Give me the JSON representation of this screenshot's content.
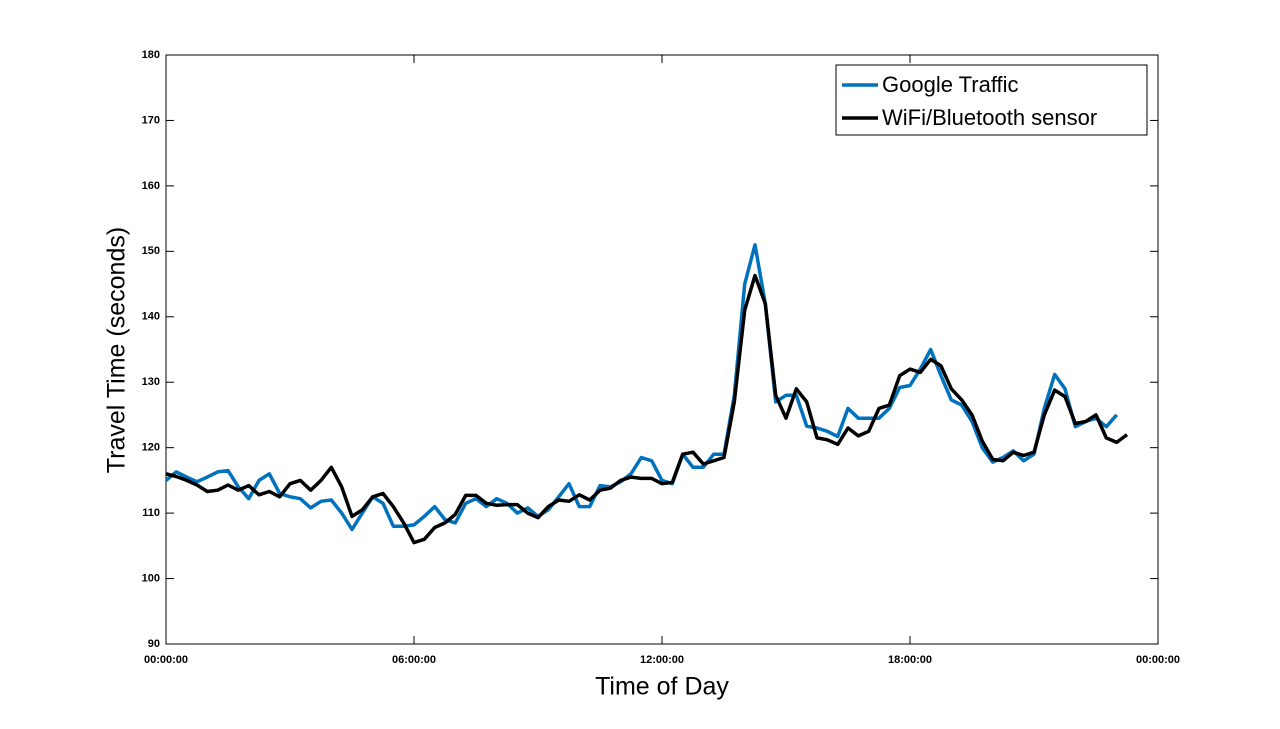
{
  "chart_data": {
    "type": "line",
    "xlabel": "Time of Day",
    "ylabel": "Travel Time (seconds)",
    "x": [
      0,
      0.25,
      0.5,
      0.75,
      1,
      1.25,
      1.5,
      1.75,
      2,
      2.25,
      2.5,
      2.75,
      3,
      3.25,
      3.5,
      3.75,
      4,
      4.25,
      4.5,
      4.75,
      5,
      5.25,
      5.5,
      5.75,
      6,
      6.25,
      6.5,
      6.75,
      7,
      7.25,
      7.5,
      7.75,
      8,
      8.25,
      8.5,
      8.75,
      9,
      9.25,
      9.5,
      9.75,
      10,
      10.25,
      10.5,
      10.75,
      11,
      11.25,
      11.5,
      11.75,
      12,
      12.25,
      12.5,
      12.75,
      13,
      13.25,
      13.5,
      13.75,
      14,
      14.25,
      14.5,
      14.75,
      15,
      15.25,
      15.5,
      15.75,
      16,
      16.25,
      16.5,
      16.75,
      17,
      17.25,
      17.5,
      17.75,
      18,
      18.25,
      18.5,
      18.75,
      19,
      19.25,
      19.5,
      19.75,
      20,
      20.25,
      20.5,
      20.75,
      21,
      21.25,
      21.5,
      21.75,
      22,
      22.25,
      22.5,
      22.75,
      23,
      23.25
    ],
    "series": [
      {
        "name": "Google Traffic",
        "color": "#0072bd",
        "values": [
          115,
          116.3,
          115.5,
          114.8,
          115.5,
          116.3,
          116.5,
          114,
          112.2,
          115,
          116,
          113,
          112.5,
          112.2,
          110.8,
          111.8,
          112,
          110,
          107.5,
          110,
          112.5,
          111.5,
          108,
          108,
          108.2,
          109.5,
          111,
          109,
          108.5,
          111.5,
          112.2,
          111,
          112.2,
          111.5,
          110,
          110.8,
          109.5,
          110.5,
          112.5,
          114.5,
          111,
          111,
          114.2,
          114,
          114.8,
          116,
          118.5,
          118,
          115,
          114.5,
          119,
          117,
          117,
          119,
          119,
          128,
          145,
          151,
          142,
          127,
          128,
          128,
          123.3,
          123,
          122.5,
          121.7,
          126,
          124.5,
          124.5,
          124.5,
          126,
          129.2,
          129.5,
          132,
          135,
          131,
          127.3,
          126.5,
          124,
          120,
          117.8,
          118.5,
          119.5,
          118,
          119,
          126,
          131.2,
          129,
          123.2,
          124,
          124.5,
          123.2,
          125,
          null
        ]
      },
      {
        "name": "WiFi/Bluetooth sensor",
        "color": "#000000",
        "values": [
          116,
          115.6,
          115,
          114.3,
          113.3,
          113.5,
          114.3,
          113.5,
          114.2,
          112.8,
          113.3,
          112.5,
          114.5,
          115,
          113.5,
          115,
          117,
          114,
          109.5,
          110.5,
          112.5,
          113,
          111,
          108.5,
          105.5,
          106,
          107.8,
          108.5,
          109.8,
          112.7,
          112.7,
          111.5,
          111.2,
          111.3,
          111.3,
          110,
          109.3,
          111,
          112,
          111.8,
          112.8,
          112,
          113.5,
          113.8,
          115,
          115.5,
          115.3,
          115.3,
          114.5,
          114.7,
          119,
          119.3,
          117.5,
          118,
          118.5,
          127,
          141,
          146.3,
          142,
          128,
          124.5,
          129,
          127,
          121.5,
          121.2,
          120.5,
          123,
          121.8,
          122.5,
          126,
          126.5,
          131,
          132,
          131.5,
          133.5,
          132.5,
          129,
          127.3,
          125,
          121,
          118.2,
          118,
          119.3,
          118.8,
          119.3,
          125,
          128.8,
          127.8,
          123.7,
          124,
          125,
          121.5,
          120.8,
          122
        ]
      }
    ],
    "xlim": [
      0,
      24
    ],
    "xticks": [
      {
        "value": 0,
        "label": "00:00:00"
      },
      {
        "value": 6,
        "label": "06:00:00"
      },
      {
        "value": 12,
        "label": "12:00:00"
      },
      {
        "value": 18,
        "label": "18:00:00"
      },
      {
        "value": 24,
        "label": "00:00:00"
      }
    ],
    "ylim": [
      90,
      180
    ],
    "yticks": [
      90,
      100,
      110,
      120,
      130,
      140,
      150,
      160,
      170,
      180
    ],
    "legend": "upper right"
  }
}
